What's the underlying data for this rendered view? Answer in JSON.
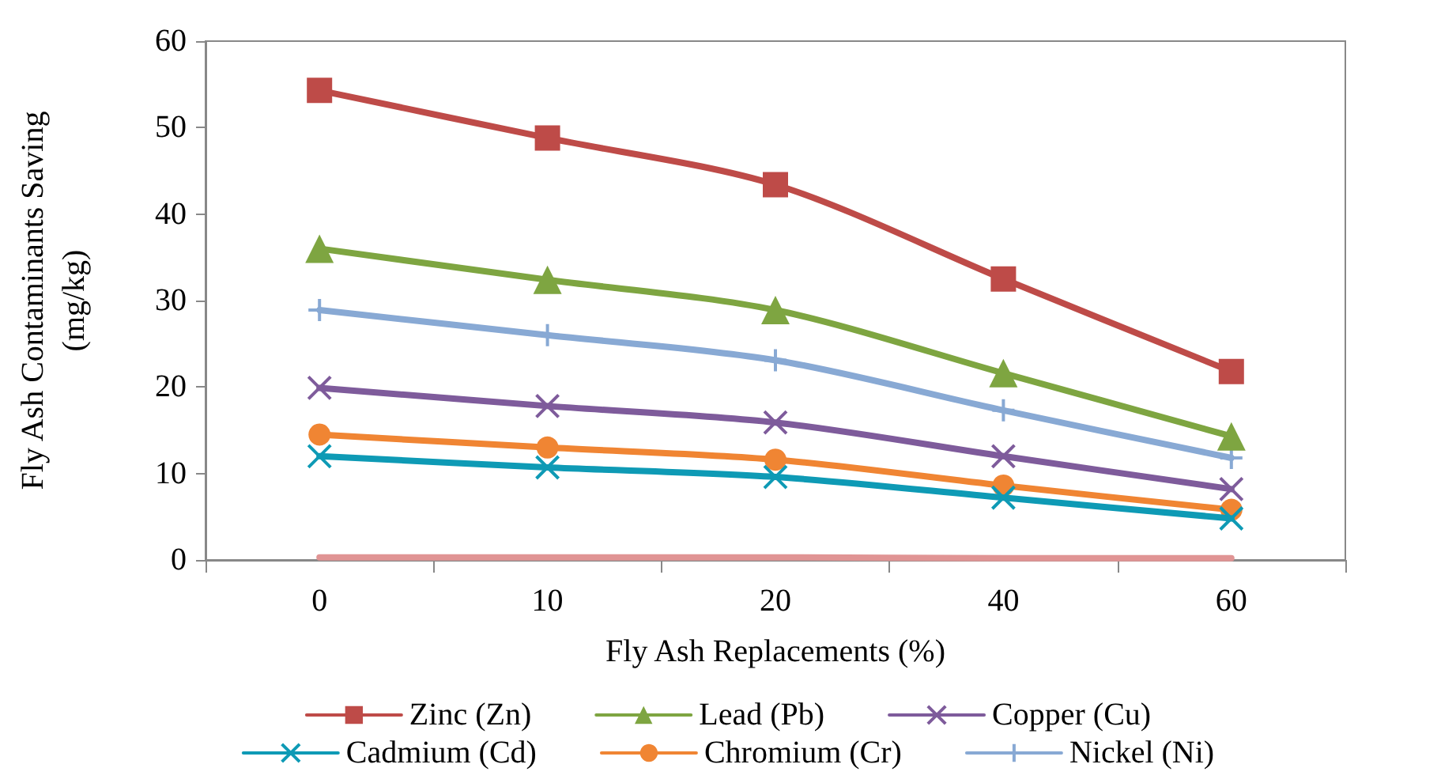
{
  "chart_data": {
    "type": "line",
    "xlabel": "Fly Ash Replacements (%)",
    "ylabel": "Fly Ash Contaminants Saving\n(mg/kg)",
    "categories": [
      "0",
      "10",
      "20",
      "40",
      "60"
    ],
    "series": [
      {
        "name": "Zinc (Zn)",
        "color": "#be4b48",
        "marker": "square",
        "values": [
          54.3,
          48.8,
          43.4,
          32.5,
          21.8
        ]
      },
      {
        "name": "Lead (Pb)",
        "color": "#7ea541",
        "marker": "triangle",
        "values": [
          36,
          32.4,
          28.9,
          21.6,
          14.3
        ]
      },
      {
        "name": "Copper (Cu)",
        "color": "#7e5b9b",
        "marker": "cross",
        "values": [
          19.9,
          17.8,
          15.9,
          12,
          8.2
        ]
      },
      {
        "name": "Cadmium (Cd)",
        "color": "#0e9ab5",
        "marker": "cross",
        "values": [
          12,
          10.7,
          9.6,
          7.2,
          4.8
        ]
      },
      {
        "name": "Chromium (Cr)",
        "color": "#f08533",
        "marker": "circle",
        "values": [
          14.5,
          13,
          11.6,
          8.6,
          5.8
        ]
      },
      {
        "name": "Nickel (Ni)",
        "color": "#88a9d4",
        "marker": "plus",
        "values": [
          28.9,
          26,
          23.1,
          17.3,
          11.8
        ]
      },
      {
        "color": "#e09494",
        "marker": "none",
        "values": [
          0.3,
          0.3,
          0.3,
          0.2,
          0.2
        ]
      }
    ],
    "ylim": [
      0,
      60
    ],
    "yticks": [
      0,
      10,
      20,
      30,
      40,
      50,
      60
    ],
    "grid": false,
    "legend": "bottom",
    "line_style": "solid"
  }
}
